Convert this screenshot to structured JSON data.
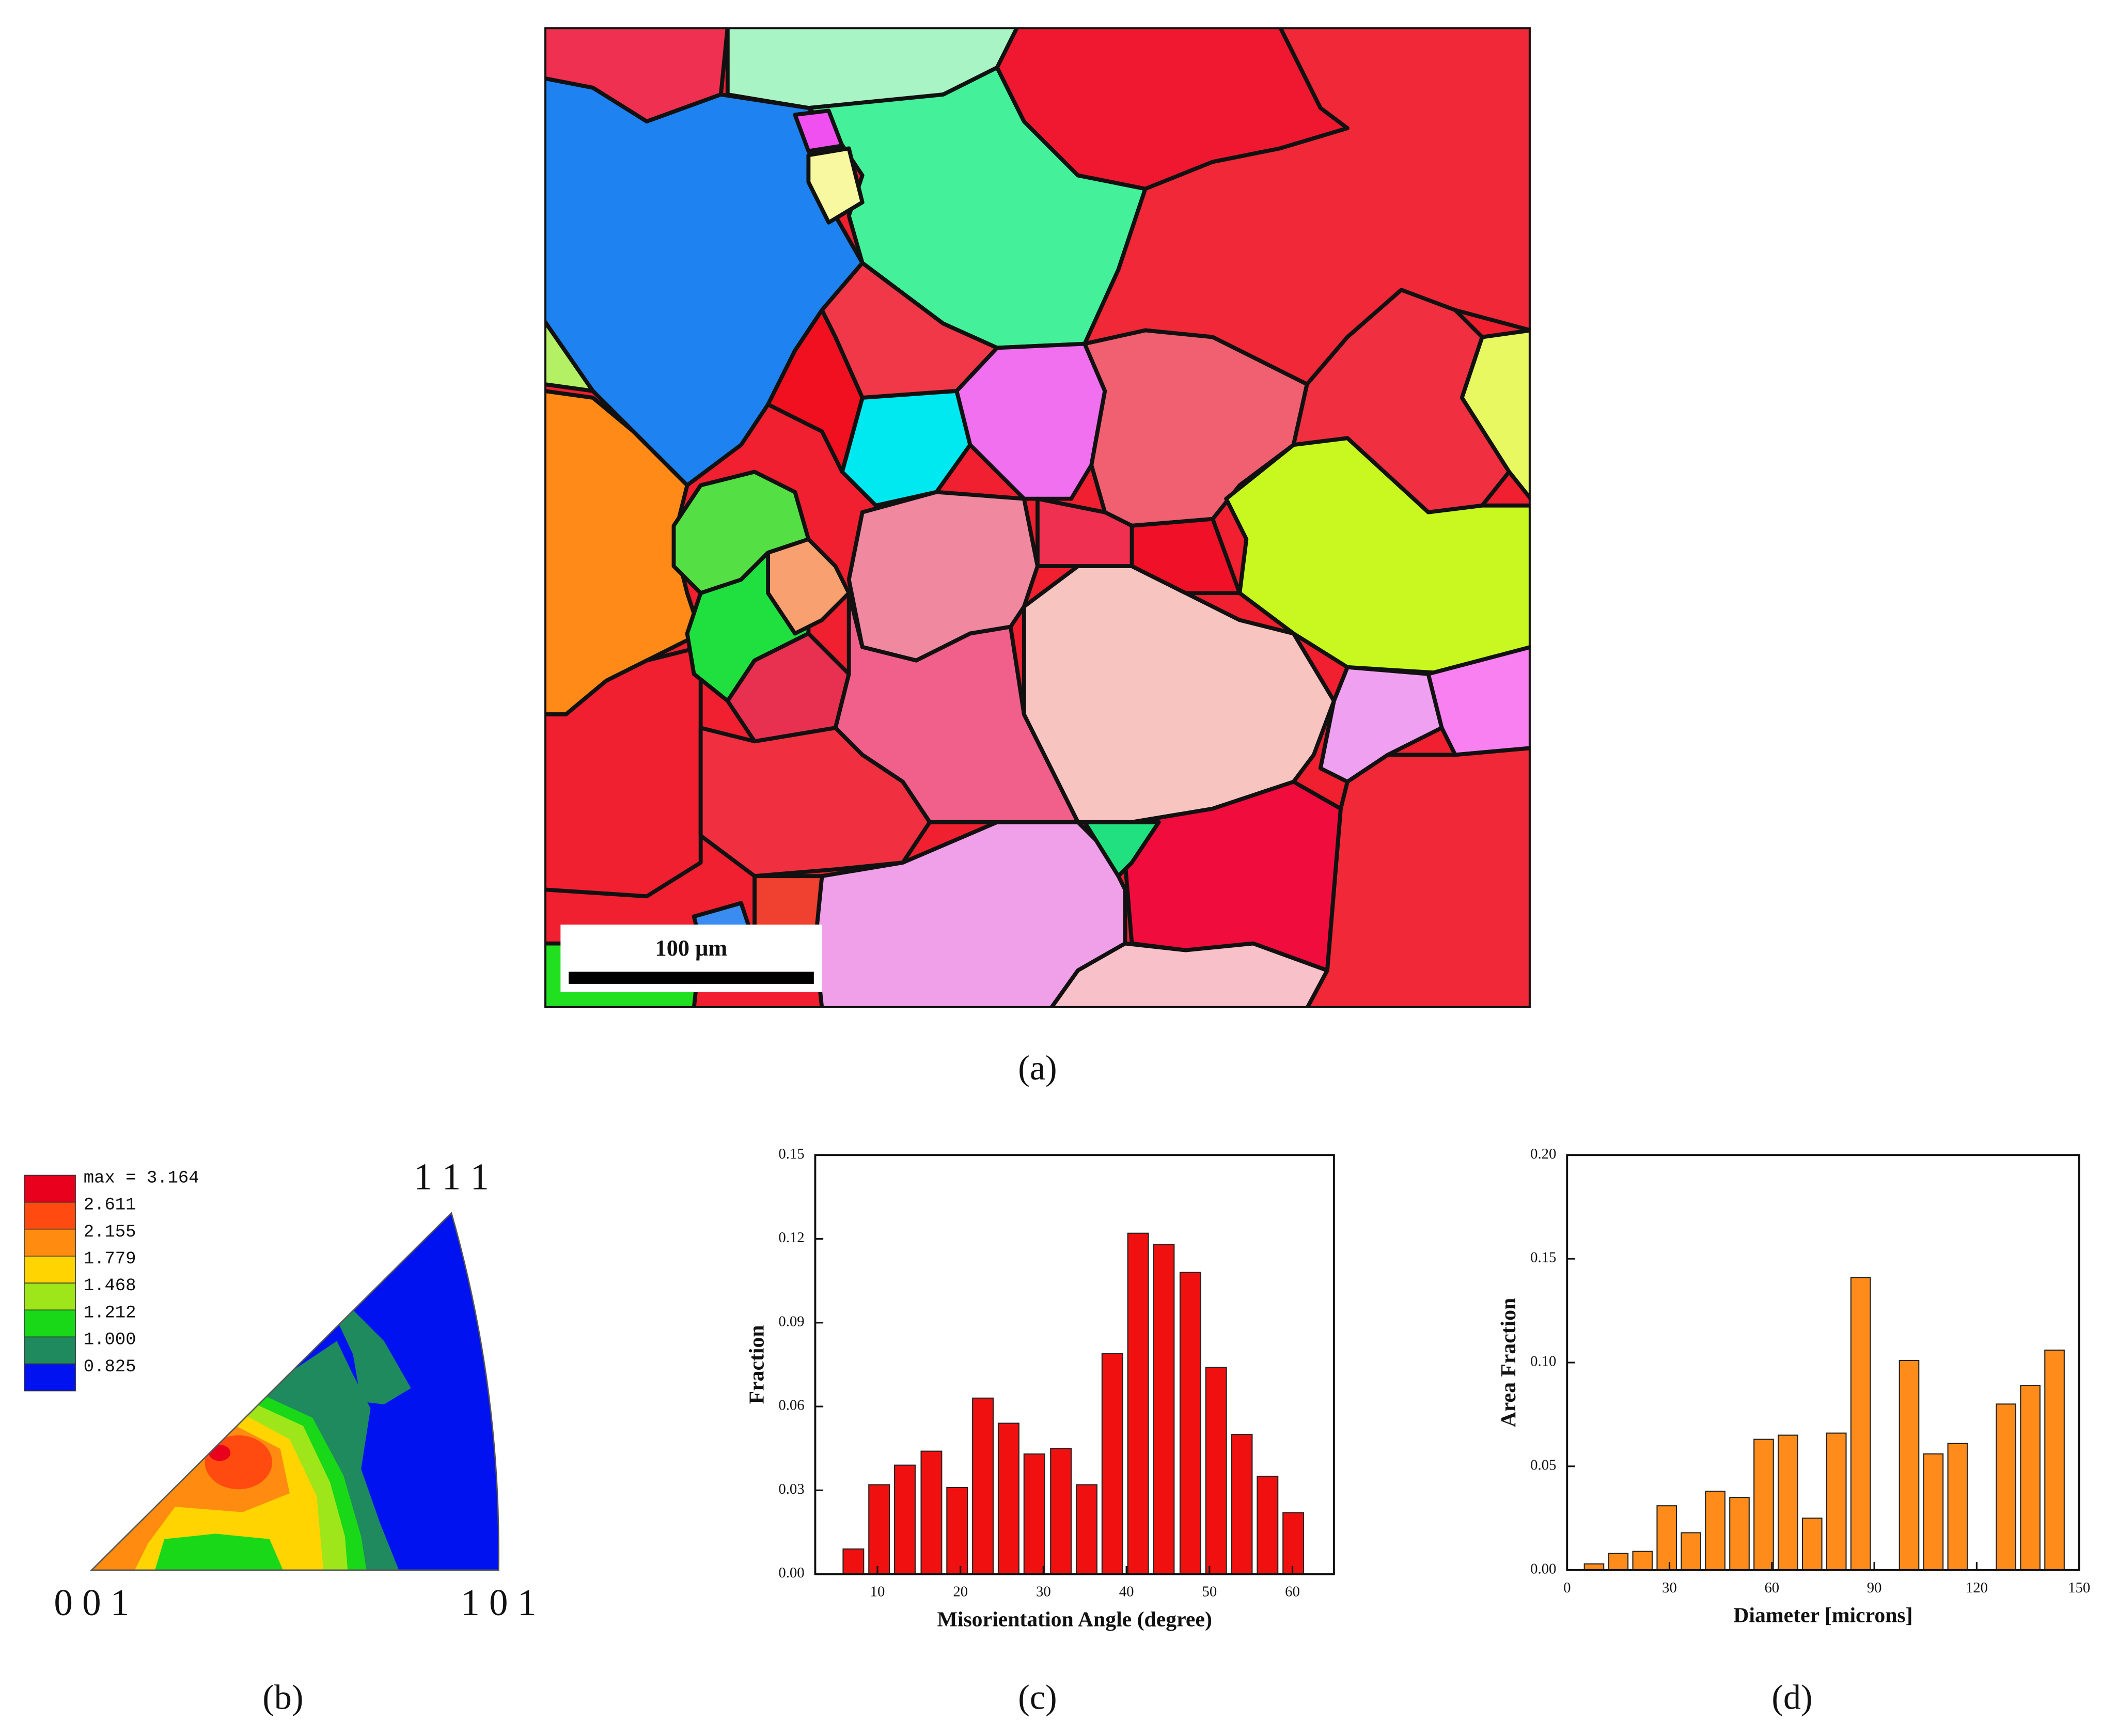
{
  "panel_labels": [
    "(a)",
    "(b)",
    "(c)",
    "(d)"
  ],
  "scale_bar": "100 μm",
  "ipf": {
    "legend": [
      "max = 3.164",
      "2.611",
      "2.155",
      "1.779",
      "1.468",
      "1.212",
      "1.000",
      "0.825"
    ],
    "colors": [
      "#e8001c",
      "#ff4a10",
      "#ff8c10",
      "#ffd400",
      "#9ee61a",
      "#18d818",
      "#1e8a5e",
      "#0012f0"
    ],
    "poles": [
      "1 1 1",
      "0 0 1",
      "1 0 1"
    ]
  },
  "chart_data": [
    {
      "type": "bar",
      "x": [
        7.1,
        10.2,
        13.3,
        16.5,
        19.6,
        22.7,
        25.8,
        28.9,
        32.1,
        35.2,
        38.3,
        41.4,
        44.5,
        47.7,
        50.8,
        53.9,
        57.0,
        60.1
      ],
      "values": [
        0.009,
        0.032,
        0.039,
        0.044,
        0.031,
        0.063,
        0.054,
        0.043,
        0.045,
        0.032,
        0.079,
        0.122,
        0.118,
        0.108,
        0.074,
        0.05,
        0.035,
        0.022
      ],
      "color": "#f01010",
      "xlabel": "Misorientation Angle (degree)",
      "ylabel": "Fraction",
      "xlim": [
        2.5,
        65
      ],
      "xticks": [
        10,
        20,
        30,
        40,
        50,
        60
      ],
      "ylim": [
        0,
        0.15
      ],
      "yticks": [
        {
          "value": 0,
          "label": "0.00"
        },
        {
          "value": 0.03,
          "label": "0.03"
        },
        {
          "value": 0.06,
          "label": "0.06"
        },
        {
          "value": 0.09,
          "label": "0.09"
        },
        {
          "value": 0.12,
          "label": "0.12"
        },
        {
          "value": 0.15,
          "label": "0.15"
        }
      ]
    },
    {
      "type": "bar",
      "x": [
        7.9,
        15,
        22.1,
        29.2,
        36.3,
        43.4,
        50.5,
        57.6,
        64.7,
        71.8,
        78.9,
        86,
        93.1,
        100.2,
        107.3,
        114.4,
        121.5,
        128.6,
        135.7,
        142.8
      ],
      "values": [
        0.003,
        0.008,
        0.009,
        0.031,
        0.018,
        0.038,
        0.035,
        0.063,
        0.065,
        0.025,
        0.066,
        0.141,
        0,
        0.101,
        0.056,
        0.061,
        0,
        0.08,
        0.089,
        0.106
      ],
      "color": "#ff8c1a",
      "xlabel": "Diameter [microns]",
      "ylabel": "Area Fraction",
      "xlim": [
        0,
        150
      ],
      "xticks": [
        0,
        30,
        60,
        90,
        120,
        150
      ],
      "ylim": [
        0,
        0.2
      ],
      "yticks": [
        {
          "value": 0,
          "label": "0.00"
        },
        {
          "value": 0.05,
          "label": "0.05"
        },
        {
          "value": 0.1,
          "label": "0.10"
        },
        {
          "value": 0.15,
          "label": "0.15"
        },
        {
          "value": 0.2,
          "label": "0.20"
        }
      ]
    }
  ]
}
